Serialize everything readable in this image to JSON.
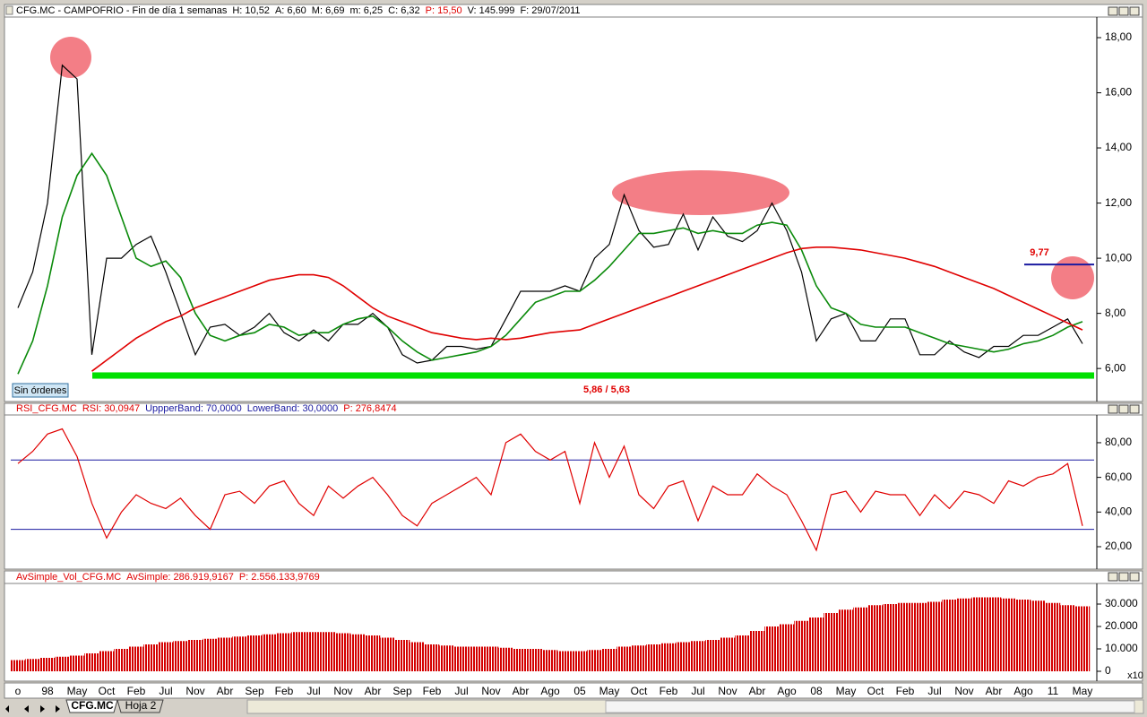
{
  "window": {
    "button": "Sin órdenes",
    "tabs": [
      "CFG.MC",
      "Hoja 2"
    ]
  },
  "chart_data": [
    {
      "type": "line",
      "title": "CFG.MC - CAMPOFRIO - Fin de día 1 semanas",
      "title_color": "#000000",
      "stats": [
        {
          "text": "H: 10,52",
          "color": "#000000"
        },
        {
          "text": "A: 6,60",
          "color": "#000000"
        },
        {
          "text": "M: 6,69",
          "color": "#000000"
        },
        {
          "text": "m: 6,25",
          "color": "#000000"
        },
        {
          "text": "C: 6,32",
          "color": "#000000"
        },
        {
          "text": "P: 15,50",
          "color": "#e00000"
        },
        {
          "text": "V: 145.999",
          "color": "#000000"
        },
        {
          "text": "F: 29/07/2011",
          "color": "#000000"
        }
      ],
      "ylim": [
        4.9,
        18.65
      ],
      "yticks": [
        {
          "value": 6,
          "label": "6,00"
        },
        {
          "value": 8,
          "label": "8,00"
        },
        {
          "value": 10,
          "label": "10,00"
        },
        {
          "value": 12,
          "label": "12,00"
        },
        {
          "value": 14,
          "label": "14,00"
        },
        {
          "value": 16,
          "label": "16,00"
        },
        {
          "value": 18,
          "label": "18,00"
        }
      ],
      "series": [
        {
          "color": "#000000",
          "values": [
            8.2,
            9.5,
            12.0,
            17.0,
            16.5,
            6.5,
            10.0,
            10.0,
            10.5,
            10.8,
            9.5,
            8.0,
            6.5,
            7.5,
            7.6,
            7.2,
            7.5,
            8.0,
            7.3,
            7.0,
            7.4,
            7.0,
            7.6,
            7.6,
            8.0,
            7.5,
            6.5,
            6.2,
            6.3,
            6.8,
            6.8,
            6.7,
            6.8,
            7.8,
            8.8,
            8.8,
            8.8,
            9.0,
            8.8,
            10.0,
            10.5,
            12.3,
            11.0,
            10.4,
            10.5,
            11.6,
            10.3,
            11.5,
            10.8,
            10.6,
            11.0,
            12.0,
            11.0,
            9.5,
            7.0,
            7.8,
            8.0,
            7.0,
            7.0,
            7.8,
            7.8,
            6.5,
            6.5,
            7.0,
            6.6,
            6.4,
            6.8,
            6.8,
            7.2,
            7.2,
            7.5,
            7.8,
            6.9
          ]
        },
        {
          "color": "#0a8a0a",
          "values": [
            5.8,
            7.0,
            9.0,
            11.5,
            13.0,
            13.8,
            13.0,
            11.5,
            10.0,
            9.7,
            9.9,
            9.3,
            8.0,
            7.2,
            7.0,
            7.2,
            7.3,
            7.6,
            7.5,
            7.2,
            7.3,
            7.3,
            7.6,
            7.8,
            7.9,
            7.5,
            7.0,
            6.6,
            6.3,
            6.4,
            6.5,
            6.6,
            6.8,
            7.2,
            7.8,
            8.4,
            8.6,
            8.8,
            8.8,
            9.2,
            9.7,
            10.3,
            10.9,
            10.9,
            11.0,
            11.1,
            10.9,
            11.0,
            10.9,
            10.9,
            11.2,
            11.3,
            11.2,
            10.3,
            9.0,
            8.2,
            8.0,
            7.6,
            7.5,
            7.5,
            7.5,
            7.3,
            7.1,
            6.9,
            6.8,
            6.7,
            6.6,
            6.7,
            6.9,
            7.0,
            7.2,
            7.5,
            7.7
          ]
        },
        {
          "color": "#e00000",
          "values": [
            null,
            null,
            null,
            null,
            null,
            5.9,
            6.3,
            6.7,
            7.1,
            7.4,
            7.7,
            7.9,
            8.2,
            8.4,
            8.6,
            8.8,
            9.0,
            9.2,
            9.3,
            9.4,
            9.4,
            9.3,
            9.0,
            8.6,
            8.2,
            7.9,
            7.7,
            7.5,
            7.3,
            7.2,
            7.1,
            7.05,
            7.1,
            7.05,
            7.1,
            7.2,
            7.3,
            7.35,
            7.4,
            7.6,
            7.8,
            8.0,
            8.2,
            8.4,
            8.6,
            8.8,
            9.0,
            9.2,
            9.4,
            9.6,
            9.8,
            10.0,
            10.2,
            10.35,
            10.4,
            10.4,
            10.35,
            10.3,
            10.2,
            10.1,
            10.0,
            9.85,
            9.7,
            9.5,
            9.3,
            9.1,
            8.9,
            8.65,
            8.4,
            8.15,
            7.9,
            7.65,
            7.4
          ]
        }
      ],
      "resistance": {
        "value": 9.77,
        "label": "9,77",
        "color": "#1a1aa0"
      },
      "support": {
        "values": [
          5.86,
          5.63
        ],
        "label": "5,86 / 5,63",
        "color": "#00e000"
      }
    },
    {
      "type": "line",
      "title": "RSI_CFG.MC",
      "title_color": "#e00000",
      "stats": [
        {
          "text": "RSI: 30,0947",
          "color": "#e00000"
        },
        {
          "text": "UppperBand: 70,0000",
          "color": "#1a1aa0"
        },
        {
          "text": "LowerBand: 30,0000",
          "color": "#1a1aa0"
        },
        {
          "text": "P: 276,8474",
          "color": "#e00000"
        }
      ],
      "ylim": [
        8.1,
        96
      ],
      "yticks": [
        {
          "value": 20,
          "label": "20,00"
        },
        {
          "value": 40,
          "label": "40,00"
        },
        {
          "value": 60,
          "label": "60,00"
        },
        {
          "value": 80,
          "label": "80,00"
        }
      ],
      "bands": {
        "values": [
          70,
          30
        ],
        "color": "#1a1aa0"
      },
      "series": [
        {
          "color": "#e00000",
          "values": [
            68,
            75,
            85,
            88,
            72,
            45,
            25,
            40,
            50,
            45,
            42,
            48,
            38,
            30,
            50,
            52,
            45,
            55,
            58,
            45,
            38,
            55,
            48,
            55,
            60,
            50,
            38,
            32,
            45,
            50,
            55,
            60,
            50,
            80,
            85,
            75,
            70,
            75,
            45,
            80,
            60,
            78,
            50,
            42,
            55,
            58,
            35,
            55,
            50,
            50,
            62,
            55,
            50,
            35,
            18,
            50,
            52,
            40,
            52,
            50,
            50,
            38,
            50,
            42,
            52,
            50,
            45,
            58,
            55,
            60,
            62,
            68,
            32
          ]
        }
      ]
    },
    {
      "type": "bar",
      "title": "AvSimple_Vol_CFG.MC",
      "title_color": "#e00000",
      "stats": [
        {
          "text": "AvSimple: 286.919,9167",
          "color": "#e00000"
        },
        {
          "text": "P: 2.556.133,9769",
          "color": "#e00000"
        }
      ],
      "corner_label": "x10",
      "ylim": [
        -800,
        38800
      ],
      "yticks": [
        {
          "value": 0,
          "label": "0"
        },
        {
          "value": 10000,
          "label": "10.000"
        },
        {
          "value": 20000,
          "label": "20.000"
        },
        {
          "value": 30000,
          "label": "30.000"
        }
      ],
      "color": "#d40000",
      "categories": [
        "o",
        null,
        "98",
        null,
        "May",
        null,
        "Oct",
        null,
        "Feb",
        null,
        "Jul",
        null,
        "Nov",
        null,
        "Abr",
        null,
        "Sep",
        null,
        "Feb",
        null,
        "Jul",
        null,
        "Nov",
        null,
        "Abr",
        null,
        "Sep",
        null,
        "Feb",
        null,
        "Jul",
        null,
        "Nov",
        null,
        "Abr",
        null,
        "Ago",
        null,
        "05",
        null,
        "May",
        null,
        "Oct",
        null,
        "Feb",
        null,
        "Jul",
        null,
        "Nov",
        null,
        "Abr",
        null,
        "Ago",
        null,
        "08",
        null,
        "May",
        null,
        "Oct",
        null,
        "Feb",
        null,
        "Jul",
        null,
        "Nov",
        null,
        "Abr",
        null,
        "Ago",
        null,
        "11",
        null,
        "May"
      ],
      "values": [
        5000,
        5500,
        6000,
        6500,
        7000,
        8000,
        9000,
        10000,
        11000,
        12000,
        13000,
        13500,
        14000,
        14500,
        15000,
        15500,
        16000,
        16500,
        17000,
        17500,
        17500,
        17500,
        17000,
        16500,
        16000,
        15000,
        14000,
        13000,
        12000,
        11500,
        11000,
        11000,
        11000,
        10500,
        10000,
        10000,
        9500,
        9000,
        9000,
        9500,
        10000,
        11000,
        11500,
        12000,
        12500,
        13000,
        13500,
        14000,
        15000,
        16000,
        18000,
        20000,
        21000,
        22500,
        24000,
        26000,
        27500,
        28500,
        29500,
        30000,
        30500,
        30500,
        31000,
        32000,
        32500,
        33000,
        33000,
        32500,
        32000,
        31500,
        30500,
        29500,
        29000
      ]
    }
  ]
}
